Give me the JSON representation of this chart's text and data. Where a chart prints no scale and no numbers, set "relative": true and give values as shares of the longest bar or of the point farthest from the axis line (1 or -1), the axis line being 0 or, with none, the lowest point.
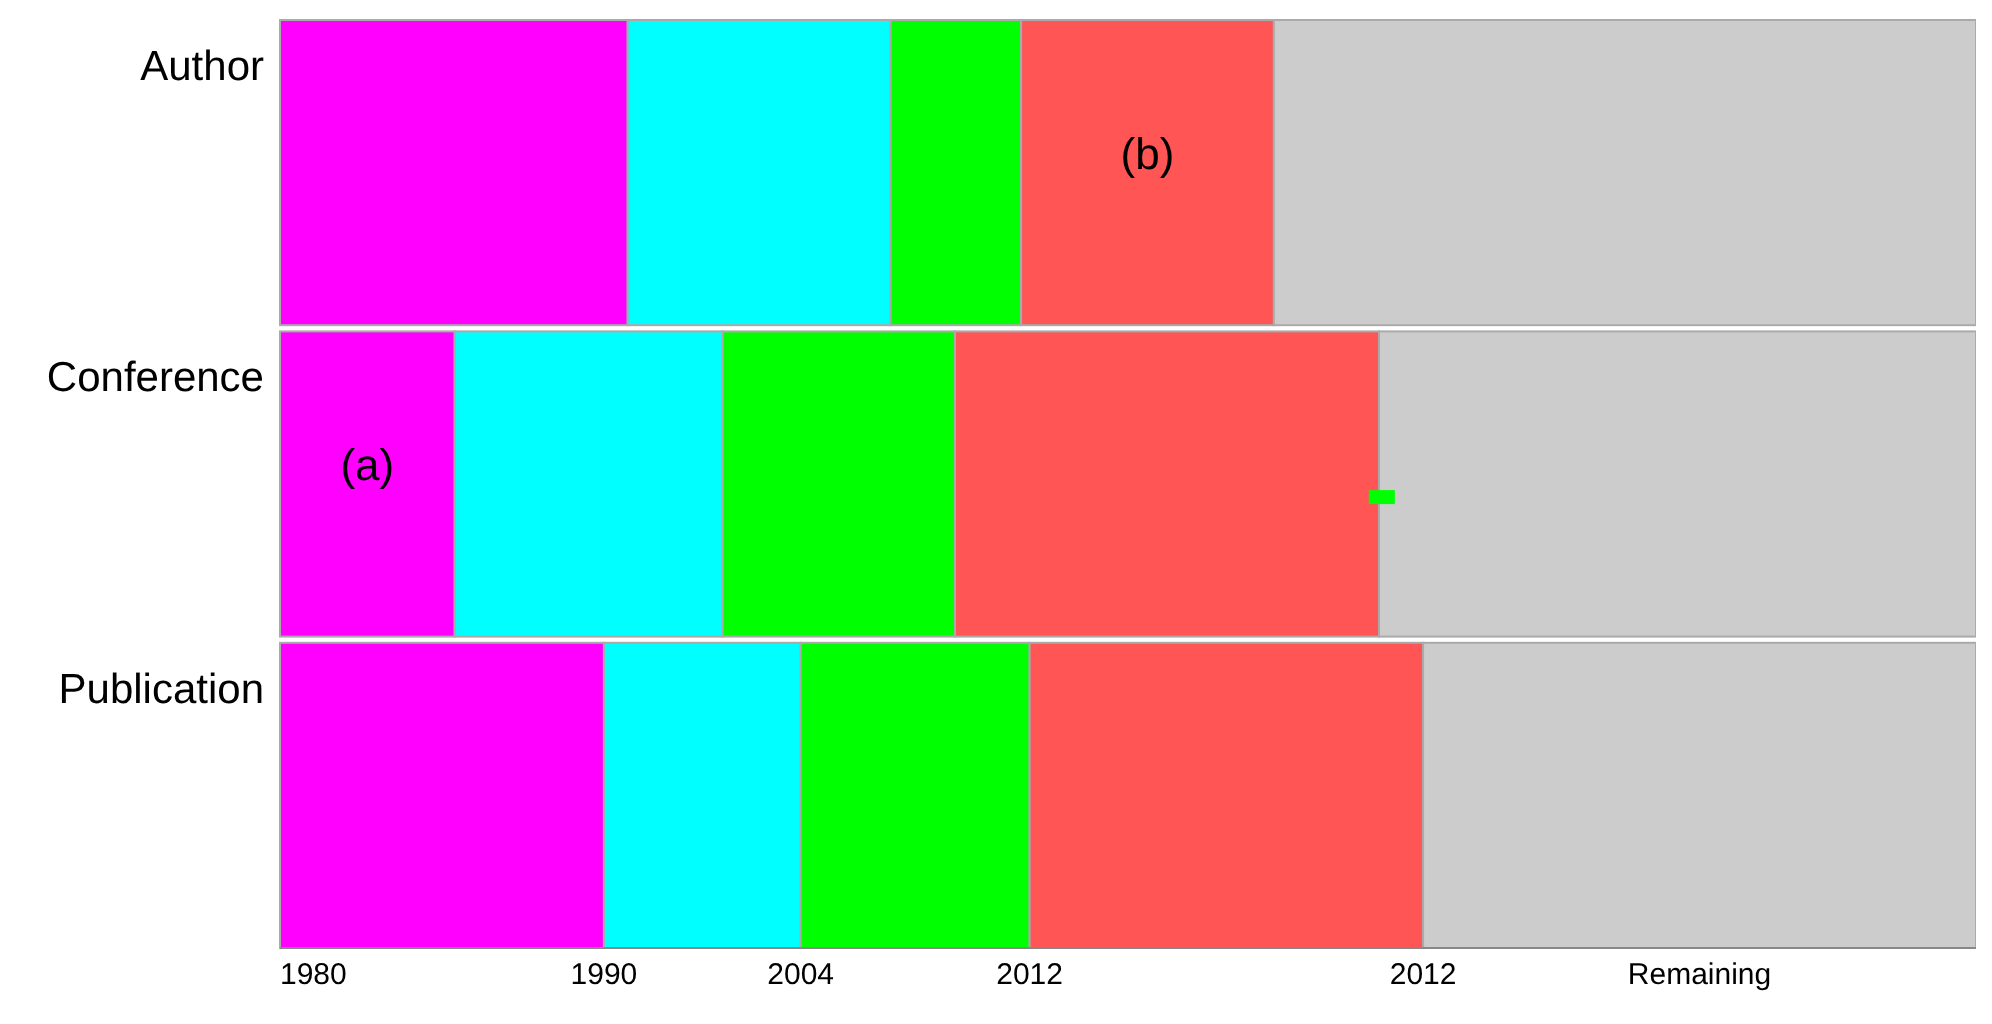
{
  "chart_data": {
    "type": "bar",
    "orientation": "horizontal",
    "stacked": true,
    "relative": true,
    "categories": [
      "Author",
      "Conference",
      "Publication"
    ],
    "series": [
      {
        "color": "#ff00ff",
        "values": [
          0.205,
          0.103,
          0.191
        ]
      },
      {
        "color": "#00ffff",
        "values": [
          0.155,
          0.158,
          0.116
        ]
      },
      {
        "color": "#00ff00",
        "values": [
          0.077,
          0.137,
          0.135
        ]
      },
      {
        "color": "#ff5555",
        "values": [
          0.149,
          0.25,
          0.232
        ]
      },
      {
        "color": "#cccccc",
        "values": [
          0.414,
          0.352,
          0.326
        ]
      }
    ],
    "annotations": [
      "1980",
      "1990",
      "2004",
      "2012",
      "2012",
      "Remaining",
      "(b)",
      "(a)"
    ]
  }
}
